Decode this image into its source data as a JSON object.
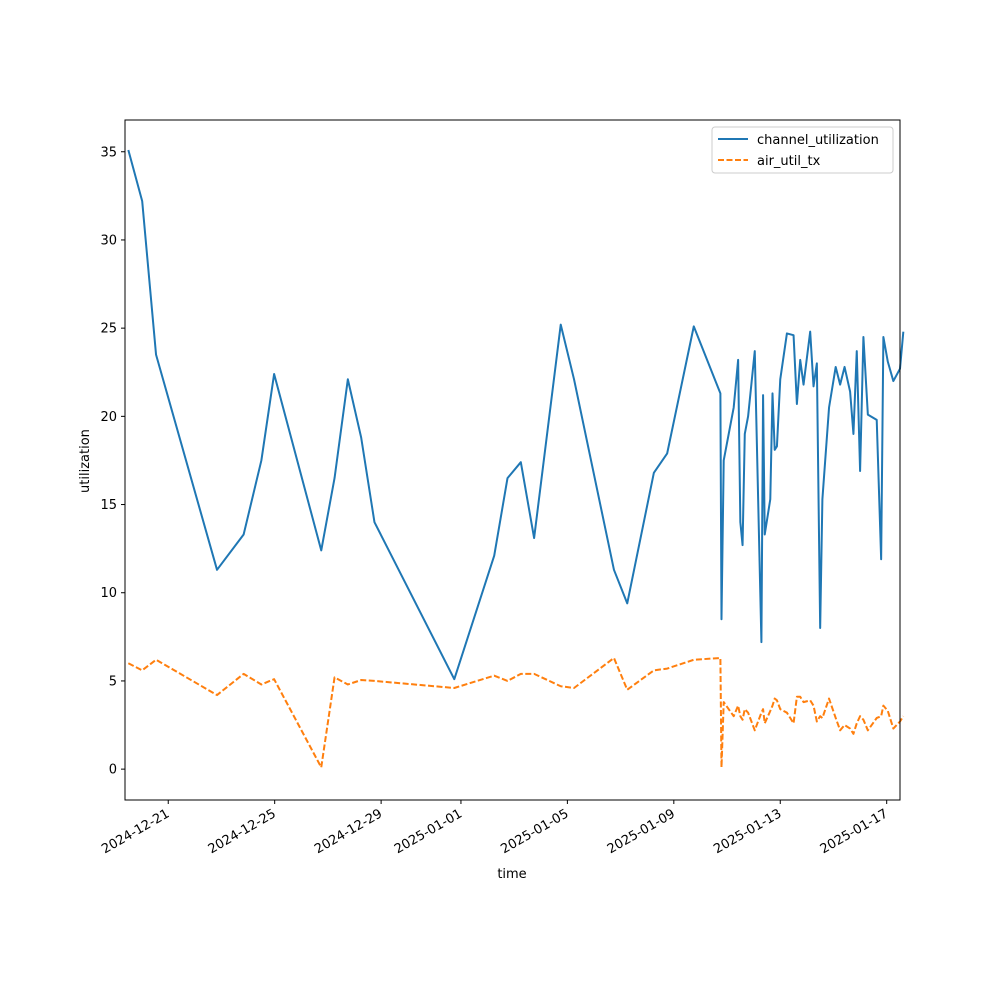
{
  "chart_data": {
    "type": "line",
    "title": "",
    "xlabel": "time",
    "ylabel": "utilization",
    "x_type": "date",
    "xlim": [
      "2024-12-19",
      "2025-01-17"
    ],
    "ylim": [
      -1.75,
      36.8
    ],
    "x_ticks": [
      "2024-12-21",
      "2024-12-25",
      "2024-12-29",
      "2025-01-01",
      "2025-01-05",
      "2025-01-09",
      "2025-01-13",
      "2025-01-17"
    ],
    "y_ticks": [
      0,
      5,
      10,
      15,
      20,
      25,
      30,
      35
    ],
    "legend": {
      "placement": "top-right"
    },
    "grid": false,
    "series": [
      {
        "name": "channel_utilization",
        "color": "#1f77b4",
        "style": "solid",
        "points": [
          [
            "2024-12-19 12:00",
            35.1
          ],
          [
            "2024-12-20 00:30",
            32.2
          ],
          [
            "2024-12-20 13:00",
            23.5
          ],
          [
            "2024-12-22 20:00",
            11.3
          ],
          [
            "2024-12-23 20:00",
            13.3
          ],
          [
            "2024-12-24 12:00",
            17.5
          ],
          [
            "2024-12-24 23:30",
            22.4
          ],
          [
            "2024-12-26 18:00",
            12.4
          ],
          [
            "2024-12-27 06:00",
            16.5
          ],
          [
            "2024-12-27 18:00",
            22.1
          ],
          [
            "2024-12-28 06:00",
            18.8
          ],
          [
            "2024-12-28 18:00",
            14.0
          ],
          [
            "2024-12-31 18:00",
            5.1
          ],
          [
            "2025-01-02 06:00",
            12.1
          ],
          [
            "2025-01-02 18:00",
            16.5
          ],
          [
            "2025-01-03 06:00",
            17.4
          ],
          [
            "2025-01-03 18:00",
            13.1
          ],
          [
            "2025-01-04 18:00",
            25.2
          ],
          [
            "2025-01-05 06:00",
            22.1
          ],
          [
            "2025-01-06 18:00",
            11.3
          ],
          [
            "2025-01-07 06:00",
            9.4
          ],
          [
            "2025-01-08 06:00",
            16.8
          ],
          [
            "2025-01-08 18:00",
            17.9
          ],
          [
            "2025-01-09 18:00",
            25.1
          ],
          [
            "2025-01-10 18:00",
            21.3
          ],
          [
            "2025-01-10 19:00",
            8.5
          ],
          [
            "2025-01-10 21:00",
            17.5
          ],
          [
            "2025-01-11 06:00",
            20.5
          ],
          [
            "2025-01-11 10:00",
            23.2
          ],
          [
            "2025-01-11 12:00",
            14.0
          ],
          [
            "2025-01-11 14:00",
            12.7
          ],
          [
            "2025-01-11 16:00",
            19.0
          ],
          [
            "2025-01-11 19:00",
            20.0
          ],
          [
            "2025-01-12 01:00",
            23.7
          ],
          [
            "2025-01-12 07:00",
            7.2
          ],
          [
            "2025-01-12 08:30",
            21.2
          ],
          [
            "2025-01-12 10:00",
            13.3
          ],
          [
            "2025-01-12 15:00",
            15.3
          ],
          [
            "2025-01-12 17:00",
            21.3
          ],
          [
            "2025-01-12 19:00",
            18.1
          ],
          [
            "2025-01-12 21:00",
            18.3
          ],
          [
            "2025-01-13 00:00",
            22.1
          ],
          [
            "2025-01-13 06:00",
            24.7
          ],
          [
            "2025-01-13 12:00",
            24.6
          ],
          [
            "2025-01-13 15:00",
            20.7
          ],
          [
            "2025-01-13 18:00",
            23.2
          ],
          [
            "2025-01-13 21:00",
            21.8
          ],
          [
            "2025-01-14 03:00",
            24.8
          ],
          [
            "2025-01-14 06:00",
            21.7
          ],
          [
            "2025-01-14 09:00",
            23.0
          ],
          [
            "2025-01-14 12:00",
            8.0
          ],
          [
            "2025-01-14 14:00",
            15.3
          ],
          [
            "2025-01-14 20:00",
            20.5
          ],
          [
            "2025-01-15 02:00",
            22.8
          ],
          [
            "2025-01-15 06:00",
            21.8
          ],
          [
            "2025-01-15 10:00",
            22.8
          ],
          [
            "2025-01-15 15:00",
            21.4
          ],
          [
            "2025-01-15 18:00",
            19.0
          ],
          [
            "2025-01-15 21:00",
            23.7
          ],
          [
            "2025-01-16 00:00",
            16.9
          ],
          [
            "2025-01-16 03:00",
            24.5
          ],
          [
            "2025-01-16 07:00",
            20.1
          ],
          [
            "2025-01-16 15:00",
            19.8
          ],
          [
            "2025-01-16 19:00",
            11.9
          ],
          [
            "2025-01-16 21:00",
            24.5
          ],
          [
            "2025-01-17 01:00",
            23.1
          ],
          [
            "2025-01-17 06:00",
            22.0
          ],
          [
            "2025-01-17 12:00",
            22.7
          ],
          [
            "2025-01-17 15:00",
            24.8
          ]
        ]
      },
      {
        "name": "air_util_tx",
        "color": "#ff7f0e",
        "style": "dashed",
        "points": [
          [
            "2024-12-19 12:00",
            6.0
          ],
          [
            "2024-12-20 00:30",
            5.6
          ],
          [
            "2024-12-20 13:00",
            6.2
          ],
          [
            "2024-12-22 20:00",
            4.2
          ],
          [
            "2024-12-23 20:00",
            5.4
          ],
          [
            "2024-12-24 12:00",
            4.8
          ],
          [
            "2024-12-24 23:30",
            5.1
          ],
          [
            "2024-12-26 18:00",
            0.1
          ],
          [
            "2024-12-27 06:00",
            5.2
          ],
          [
            "2024-12-27 18:00",
            4.8
          ],
          [
            "2024-12-28 06:00",
            5.05
          ],
          [
            "2024-12-28 18:00",
            5.0
          ],
          [
            "2024-12-31 18:00",
            4.6
          ],
          [
            "2025-01-02 06:00",
            5.3
          ],
          [
            "2025-01-02 18:00",
            5.0
          ],
          [
            "2025-01-03 06:00",
            5.4
          ],
          [
            "2025-01-03 18:00",
            5.4
          ],
          [
            "2025-01-04 18:00",
            4.7
          ],
          [
            "2025-01-05 06:00",
            4.6
          ],
          [
            "2025-01-06 18:00",
            6.3
          ],
          [
            "2025-01-07 06:00",
            4.5
          ],
          [
            "2025-01-08 06:00",
            5.6
          ],
          [
            "2025-01-08 18:00",
            5.7
          ],
          [
            "2025-01-09 18:00",
            6.2
          ],
          [
            "2025-01-10 18:00",
            6.3
          ],
          [
            "2025-01-10 19:00",
            0.1
          ],
          [
            "2025-01-10 21:00",
            3.8
          ],
          [
            "2025-01-11 06:00",
            3.0
          ],
          [
            "2025-01-11 10:00",
            3.6
          ],
          [
            "2025-01-11 12:00",
            3.0
          ],
          [
            "2025-01-11 14:00",
            2.8
          ],
          [
            "2025-01-11 16:00",
            3.4
          ],
          [
            "2025-01-11 19:00",
            3.2
          ],
          [
            "2025-01-12 01:00",
            2.2
          ],
          [
            "2025-01-12 07:00",
            3.2
          ],
          [
            "2025-01-12 08:30",
            3.4
          ],
          [
            "2025-01-12 10:00",
            2.6
          ],
          [
            "2025-01-12 15:00",
            3.3
          ],
          [
            "2025-01-12 17:00",
            3.6
          ],
          [
            "2025-01-12 19:00",
            4.0
          ],
          [
            "2025-01-12 21:00",
            3.9
          ],
          [
            "2025-01-13 00:00",
            3.4
          ],
          [
            "2025-01-13 06:00",
            3.2
          ],
          [
            "2025-01-13 12:00",
            2.6
          ],
          [
            "2025-01-13 15:00",
            4.1
          ],
          [
            "2025-01-13 18:00",
            4.1
          ],
          [
            "2025-01-13 21:00",
            3.8
          ],
          [
            "2025-01-14 03:00",
            3.9
          ],
          [
            "2025-01-14 06:00",
            3.6
          ],
          [
            "2025-01-14 09:00",
            2.7
          ],
          [
            "2025-01-14 12:00",
            3.0
          ],
          [
            "2025-01-14 14:00",
            2.9
          ],
          [
            "2025-01-14 20:00",
            4.0
          ],
          [
            "2025-01-15 02:00",
            2.9
          ],
          [
            "2025-01-15 06:00",
            2.2
          ],
          [
            "2025-01-15 10:00",
            2.5
          ],
          [
            "2025-01-15 15:00",
            2.3
          ],
          [
            "2025-01-15 18:00",
            2.0
          ],
          [
            "2025-01-15 21:00",
            2.6
          ],
          [
            "2025-01-16 00:00",
            3.0
          ],
          [
            "2025-01-16 03:00",
            2.8
          ],
          [
            "2025-01-16 07:00",
            2.2
          ],
          [
            "2025-01-16 15:00",
            2.9
          ],
          [
            "2025-01-16 19:00",
            3.0
          ],
          [
            "2025-01-16 21:00",
            3.6
          ],
          [
            "2025-01-17 01:00",
            3.3
          ],
          [
            "2025-01-17 06:00",
            2.3
          ],
          [
            "2025-01-17 12:00",
            2.7
          ],
          [
            "2025-01-17 15:00",
            3.0
          ]
        ]
      }
    ]
  }
}
